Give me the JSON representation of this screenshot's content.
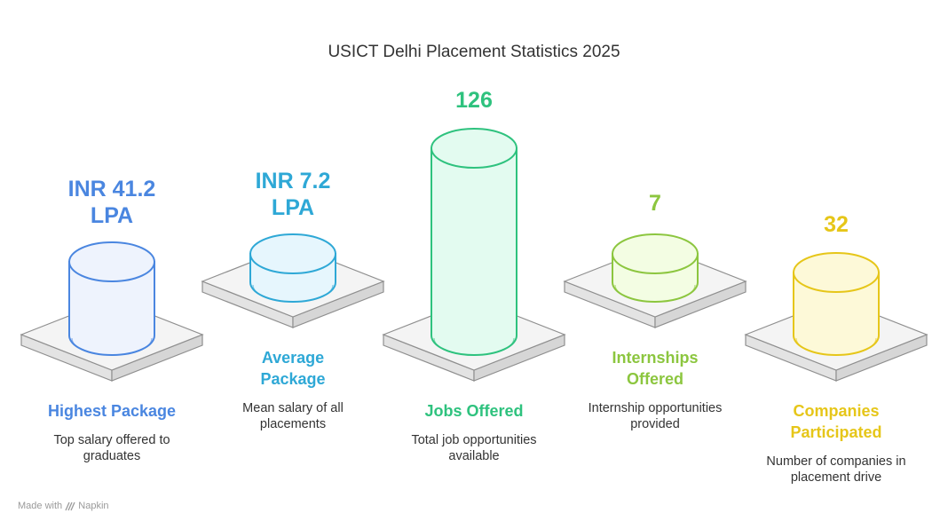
{
  "chart_data": {
    "type": "bar",
    "title": "USICT Delhi Placement Statistics 2025",
    "categories": [
      "Highest Package",
      "Average Package",
      "Jobs Offered",
      "Internships Offered",
      "Companies Participated"
    ],
    "values": [
      41.2,
      7.2,
      126,
      7,
      32
    ],
    "value_labels": [
      "INR 41.2 LPA",
      "INR 7.2 LPA",
      "126",
      "7",
      "32"
    ],
    "descriptions": [
      "Top salary offered to graduates",
      "Mean salary of all placements",
      "Total job opportunities available",
      "Internship opportunities provided",
      "Number of companies in placement drive"
    ],
    "colors": [
      "#4a86e0",
      "#2ea8d6",
      "#2ec27e",
      "#8cc63f",
      "#e6c619"
    ],
    "fills": [
      "#eef3fd",
      "#e6f6fd",
      "#e3fbf0",
      "#f3fde3",
      "#fdf9d8"
    ]
  },
  "footer": {
    "made_with": "Made with",
    "brand": "Napkin"
  }
}
